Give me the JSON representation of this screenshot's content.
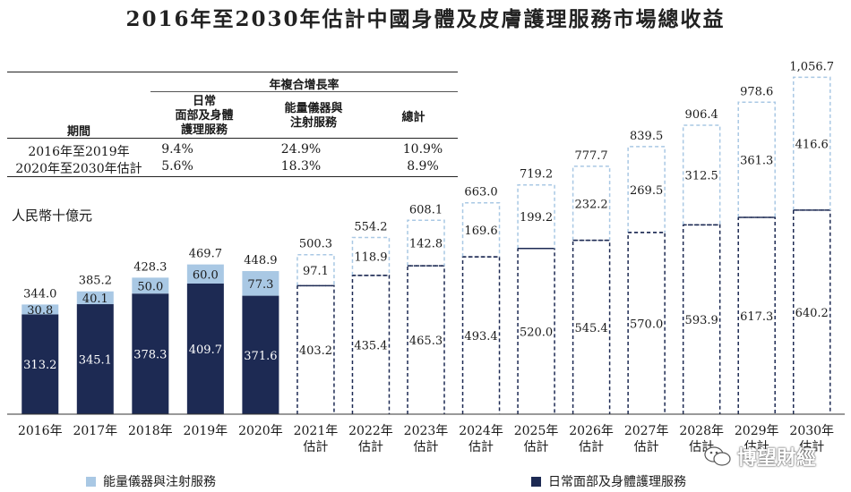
{
  "title": "2016年至2030年估計中國身體及皮膚護理服務市場總收益",
  "cagr_table": {
    "header": "年複合增長率",
    "col_period": "期間",
    "col_daily_lines": [
      "日常",
      "面部及身體",
      "護理服務"
    ],
    "col_energy_lines": [
      "能量儀器與",
      "注射服務"
    ],
    "col_total": "總計",
    "rows": [
      {
        "period": "2016年至2019年",
        "daily": "9.4%",
        "energy": "24.9%",
        "total": "10.9%"
      },
      {
        "period": "2020年至2030年估計",
        "daily": "5.6%",
        "energy": "18.3%",
        "total": "8.9%"
      }
    ]
  },
  "unit_label": "人民幣十億元",
  "chart_data": {
    "type": "bar",
    "stacked": true,
    "categories": [
      [
        "2016年"
      ],
      [
        "2017年"
      ],
      [
        "2018年"
      ],
      [
        "2019年"
      ],
      [
        "2020年"
      ],
      [
        "2021年",
        "估計"
      ],
      [
        "2022年",
        "估計"
      ],
      [
        "2023年",
        "估計"
      ],
      [
        "2024年",
        "估計"
      ],
      [
        "2025年",
        "估計"
      ],
      [
        "2026年",
        "估計"
      ],
      [
        "2027年",
        "估計"
      ],
      [
        "2028年",
        "估計"
      ],
      [
        "2029年",
        "估計"
      ],
      [
        "2030年",
        "估計"
      ]
    ],
    "series": [
      {
        "name": "日常面部及身體護理服務",
        "color": "#1d2a53",
        "values": [
          313.2,
          345.1,
          378.3,
          409.7,
          371.6,
          403.2,
          435.4,
          465.3,
          493.4,
          520.0,
          545.4,
          570.0,
          593.9,
          617.3,
          640.2
        ],
        "labels": [
          "313.2",
          "345.1",
          "378.3",
          "409.7",
          "371.6",
          "403.2",
          "435.4",
          "465.3",
          "493.4",
          "520.0",
          "545.4",
          "570.0",
          "593.9",
          "617.3",
          "640.2"
        ]
      },
      {
        "name": "能量儀器與注射服務",
        "color": "#a9c8e4",
        "values": [
          30.8,
          40.1,
          50.0,
          60.0,
          77.3,
          97.1,
          118.9,
          142.8,
          169.6,
          199.2,
          232.2,
          269.5,
          312.5,
          361.3,
          416.6
        ],
        "labels": [
          "30.8",
          "40.1",
          "50.0",
          "60.0",
          "77.3",
          "97.1",
          "118.9",
          "142.8",
          "169.6",
          "199.2",
          "232.2",
          "269.5",
          "312.5",
          "361.3",
          "416.6"
        ]
      }
    ],
    "totals": [
      344.0,
      385.2,
      428.3,
      469.7,
      448.9,
      500.3,
      554.2,
      608.1,
      663.0,
      719.2,
      777.7,
      839.5,
      906.4,
      978.6,
      1056.7
    ],
    "total_labels": [
      "344.0",
      "385.2",
      "428.3",
      "469.7",
      "448.9",
      "500.3",
      "554.2",
      "608.1",
      "663.0",
      "719.2",
      "777.7",
      "839.5",
      "906.4",
      "978.6",
      "1,056.7"
    ],
    "actual_count": 5,
    "ylim": [
      0,
      1100
    ],
    "grid": false,
    "legend_position": "bottom"
  },
  "legend": {
    "energy": "能量儀器與注射服務",
    "daily": "日常面部及身體護理服務"
  },
  "watermark": "博望財經"
}
